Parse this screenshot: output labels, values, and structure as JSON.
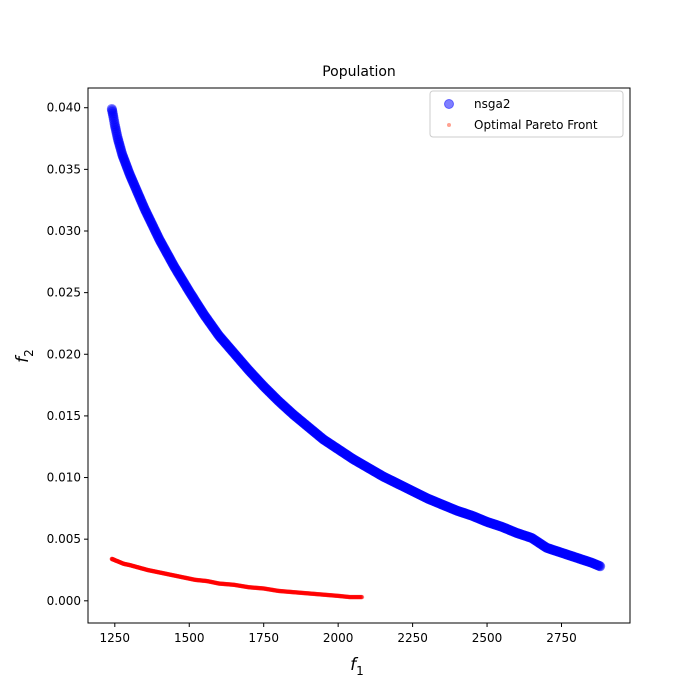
{
  "chart_data": {
    "type": "scatter",
    "title": "Population",
    "xlabel": "f",
    "xlabel_sub": "1",
    "ylabel": "f",
    "ylabel_sub": "2",
    "xlim": [
      1160,
      2980
    ],
    "ylim": [
      -0.0018,
      0.0416
    ],
    "xticks": [
      1250,
      1500,
      1750,
      2000,
      2250,
      2500,
      2750
    ],
    "yticks": [
      0.0,
      0.005,
      0.01,
      0.015,
      0.02,
      0.025,
      0.03,
      0.035,
      0.04
    ],
    "xtick_labels": [
      "1250",
      "1500",
      "1750",
      "2000",
      "2250",
      "2500",
      "2750"
    ],
    "ytick_labels": [
      "0.000",
      "0.005",
      "0.010",
      "0.015",
      "0.020",
      "0.025",
      "0.030",
      "0.035",
      "0.040"
    ],
    "grid": false,
    "legend_position": "top-right",
    "series": [
      {
        "name": "nsga2",
        "color": "#0000ff",
        "marker": "circle",
        "opacity": 0.5,
        "x": [
          1240,
          1245,
          1250,
          1260,
          1275,
          1300,
          1350,
          1400,
          1450,
          1500,
          1550,
          1600,
          1650,
          1700,
          1750,
          1800,
          1850,
          1900,
          1950,
          2000,
          2050,
          2100,
          2150,
          2200,
          2250,
          2300,
          2350,
          2400,
          2450,
          2500,
          2550,
          2600,
          2650,
          2700,
          2750,
          2800,
          2850,
          2880
        ],
        "y": [
          0.0399,
          0.0393,
          0.0386,
          0.0375,
          0.0362,
          0.0346,
          0.0318,
          0.0293,
          0.0271,
          0.0251,
          0.0232,
          0.0215,
          0.0201,
          0.0187,
          0.0174,
          0.0162,
          0.0151,
          0.0141,
          0.0131,
          0.0123,
          0.0115,
          0.0108,
          0.0101,
          0.0095,
          0.0089,
          0.0083,
          0.0078,
          0.0073,
          0.0069,
          0.0064,
          0.006,
          0.0055,
          0.0051,
          0.0043,
          0.0039,
          0.0035,
          0.0031,
          0.0028
        ]
      },
      {
        "name": "Optimal Pareto Front",
        "color": "#ff0000",
        "marker": "circle",
        "opacity": 0.5,
        "x": [
          1240,
          1260,
          1280,
          1300,
          1330,
          1360,
          1400,
          1440,
          1480,
          1520,
          1560,
          1600,
          1650,
          1700,
          1750,
          1800,
          1850,
          1900,
          1950,
          2000,
          2040,
          2080
        ],
        "y": [
          0.0034,
          0.0032,
          0.003,
          0.0029,
          0.0027,
          0.0025,
          0.0023,
          0.0021,
          0.0019,
          0.0017,
          0.0016,
          0.0014,
          0.0013,
          0.0011,
          0.001,
          0.0008,
          0.0007,
          0.0006,
          0.0005,
          0.0004,
          0.0003,
          0.0003
        ]
      }
    ]
  }
}
